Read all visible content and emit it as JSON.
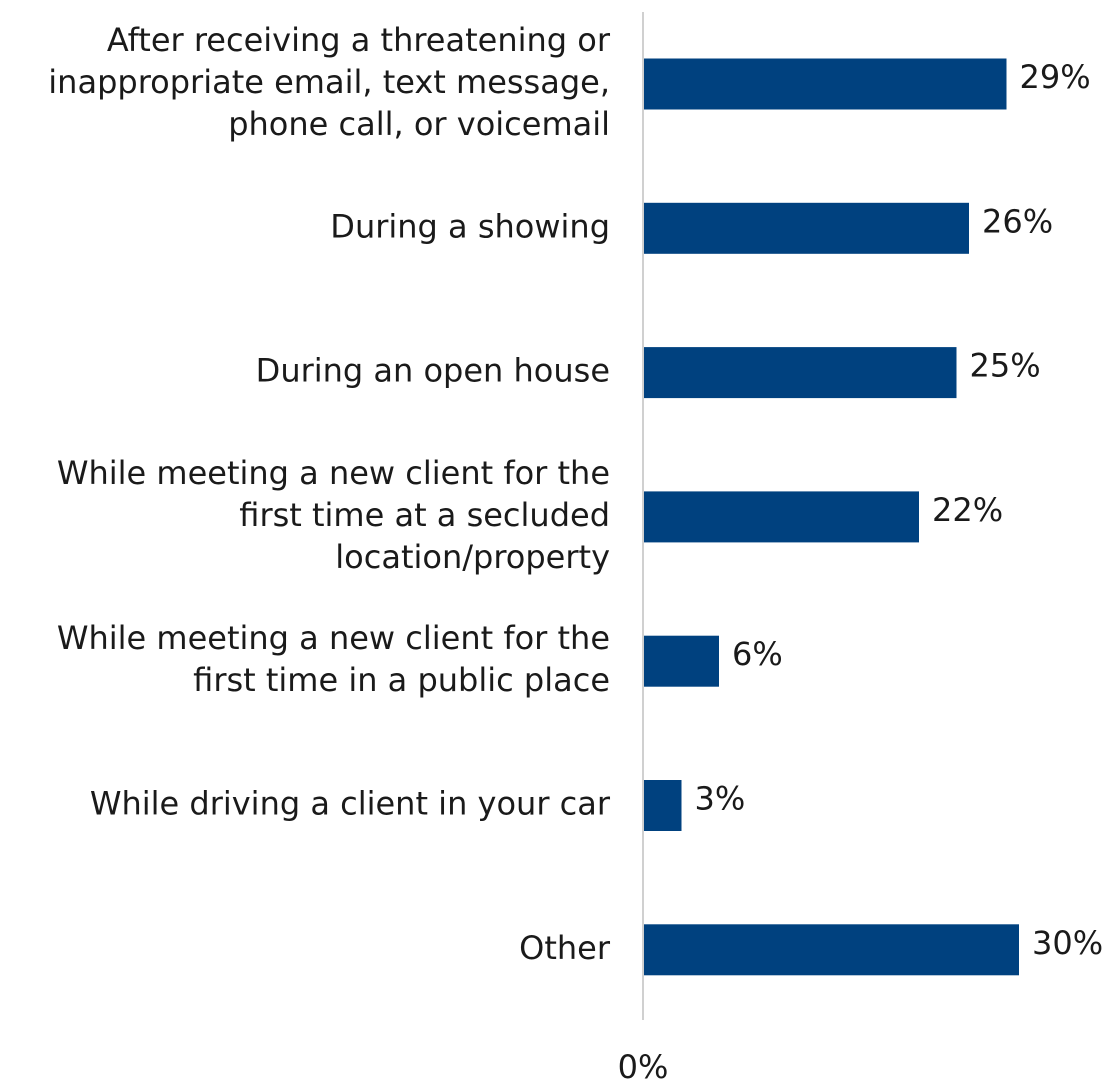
{
  "chart_data": {
    "type": "bar",
    "orientation": "horizontal",
    "categories": [
      [
        "After receiving a threatening or",
        "inappropriate email, text message,",
        "phone call, or voicemail"
      ],
      [
        "During a showing"
      ],
      [
        "During an open house"
      ],
      [
        "While meeting a new client for the",
        "first time at a secluded",
        "location/property"
      ],
      [
        "While meeting a new client for the",
        "first time in a public place"
      ],
      [
        "While driving a client in your car"
      ],
      [
        "Other"
      ]
    ],
    "values": [
      29,
      26,
      25,
      22,
      6,
      3,
      30
    ],
    "value_labels": [
      "29%",
      "26%",
      "25%",
      "22%",
      "6%",
      "3%",
      "30%"
    ],
    "x_tick_labels": [
      "0%"
    ],
    "xlim": [
      0,
      30
    ],
    "bar_color": "#00417F",
    "axis_color": "#D0D0D0",
    "grid": false,
    "legend": "none"
  }
}
